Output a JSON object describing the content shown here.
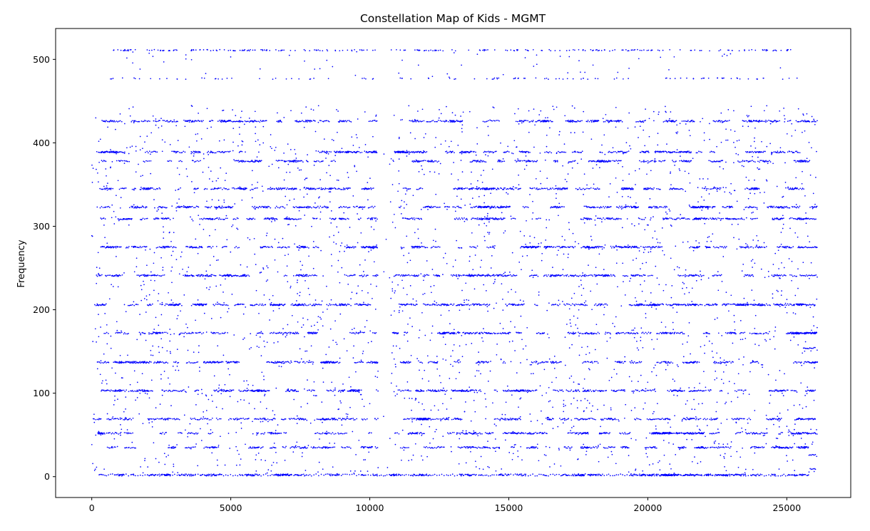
{
  "chart_data": {
    "type": "scatter",
    "title": "Constellation Map of Kids - MGMT",
    "xlabel": "",
    "ylabel": "Frequency",
    "xlim": [
      -1300,
      27300
    ],
    "ylim": [
      -25,
      537
    ],
    "xticks": [
      0,
      5000,
      10000,
      15000,
      20000,
      25000
    ],
    "yticks": [
      0,
      100,
      200,
      300,
      400,
      500
    ],
    "grid": false,
    "legend": "none",
    "marker_color": "#0000ff",
    "x_extent": [
      0,
      26100
    ],
    "y_extent": [
      0,
      511
    ],
    "baseline_y": 2,
    "top_band_y": [
      477,
      511
    ],
    "main_band_max_y": 445,
    "gap_x": [
      10300,
      10700
    ],
    "dense_frequency_bands": [
      2,
      35,
      52,
      69,
      103,
      137,
      172,
      206,
      241,
      275,
      309,
      323,
      345,
      378,
      389,
      426
    ],
    "approx_point_count": 12000
  }
}
